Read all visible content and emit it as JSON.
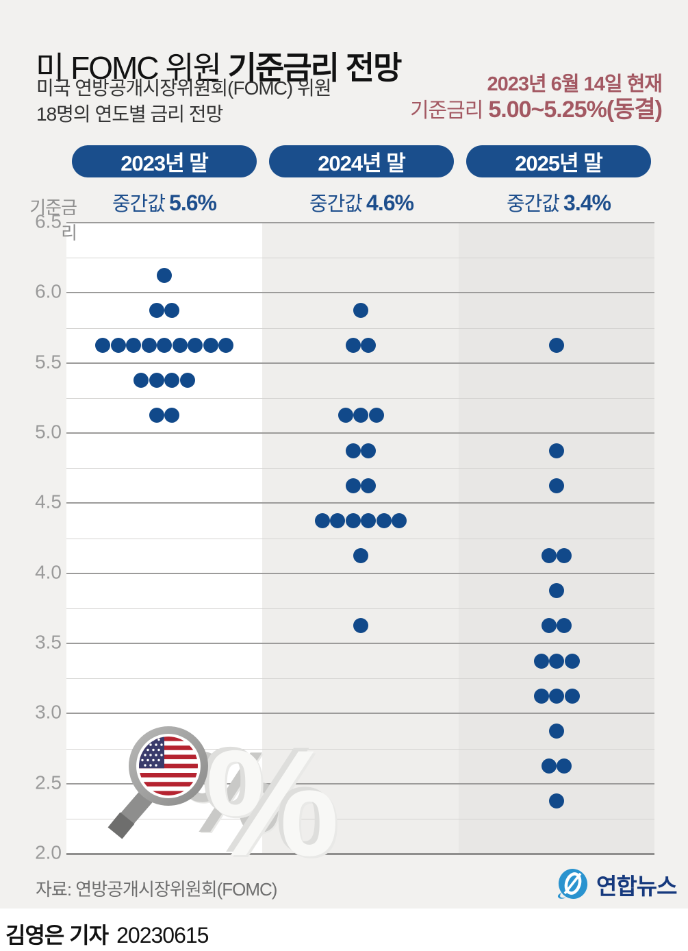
{
  "header": {
    "title_light": "미 FOMC 위원 ",
    "title_bold": "기준금리 전망",
    "subtitle_line1": "미국 연방공개시장위원회(FOMC) 위원",
    "subtitle_line2": "18명의 연도별 금리 전망",
    "as_of_date": "2023년 6월 14일 현재",
    "rate_label": "기준금리",
    "rate_value": "5.00~5.25%(동결)"
  },
  "chart_data": {
    "type": "scatter",
    "title": "미 FOMC 위원 기준금리 전망",
    "ylabel": "기준금리",
    "unit": "%",
    "ylim": [
      2.0,
      6.5
    ],
    "yticks": [
      "6.5",
      "6.0",
      "5.5",
      "5.0",
      "4.5",
      "4.0",
      "3.5",
      "3.0",
      "2.5",
      "2.0"
    ],
    "grid": "horizontal major every 0.5, minor every 0.25",
    "legend_position": "none",
    "members_total": 18,
    "columns": [
      {
        "label": "2023년 말",
        "median_label": "중간값",
        "median_value": "5.6%",
        "dots": [
          {
            "rate": 6.125,
            "count": 1
          },
          {
            "rate": 5.875,
            "count": 2
          },
          {
            "rate": 5.625,
            "count": 9
          },
          {
            "rate": 5.375,
            "count": 4
          },
          {
            "rate": 5.125,
            "count": 2
          }
        ]
      },
      {
        "label": "2024년 말",
        "median_label": "중간값",
        "median_value": "4.6%",
        "dots": [
          {
            "rate": 5.875,
            "count": 1
          },
          {
            "rate": 5.625,
            "count": 2
          },
          {
            "rate": 5.125,
            "count": 3
          },
          {
            "rate": 4.875,
            "count": 2
          },
          {
            "rate": 4.625,
            "count": 2
          },
          {
            "rate": 4.375,
            "count": 6
          },
          {
            "rate": 4.125,
            "count": 1
          },
          {
            "rate": 3.625,
            "count": 1
          }
        ]
      },
      {
        "label": "2025년 말",
        "median_label": "중간값",
        "median_value": "3.4%",
        "dots": [
          {
            "rate": 5.625,
            "count": 1
          },
          {
            "rate": 4.875,
            "count": 1
          },
          {
            "rate": 4.625,
            "count": 1
          },
          {
            "rate": 4.125,
            "count": 2
          },
          {
            "rate": 3.875,
            "count": 1
          },
          {
            "rate": 3.625,
            "count": 2
          },
          {
            "rate": 3.375,
            "count": 3
          },
          {
            "rate": 3.125,
            "count": 3
          },
          {
            "rate": 2.875,
            "count": 1
          },
          {
            "rate": 2.625,
            "count": 2
          },
          {
            "rate": 2.375,
            "count": 1
          }
        ]
      }
    ]
  },
  "footer": {
    "source": "자료: 연방공개시장위원회(FOMC)",
    "logo_text": "연합뉴스"
  },
  "byline": {
    "author": "김영은 기자",
    "date": "20230615"
  },
  "colors": {
    "card_bg": "#f2f1ef",
    "column_2023_bg": "#ffffff",
    "column_2024_bg": "#efeeec",
    "column_2025_bg": "#e8e7e5",
    "dot_blue": "#11498a",
    "pill_blue": "#1a4e8c",
    "median_blue": "#1d4e8c",
    "maroon": "#a35862",
    "grid_major": "#9c9b9a",
    "grid_minor": "#d4d3d1",
    "logo_blue": "#2a93cf",
    "logo_text_navy": "#16397d"
  }
}
